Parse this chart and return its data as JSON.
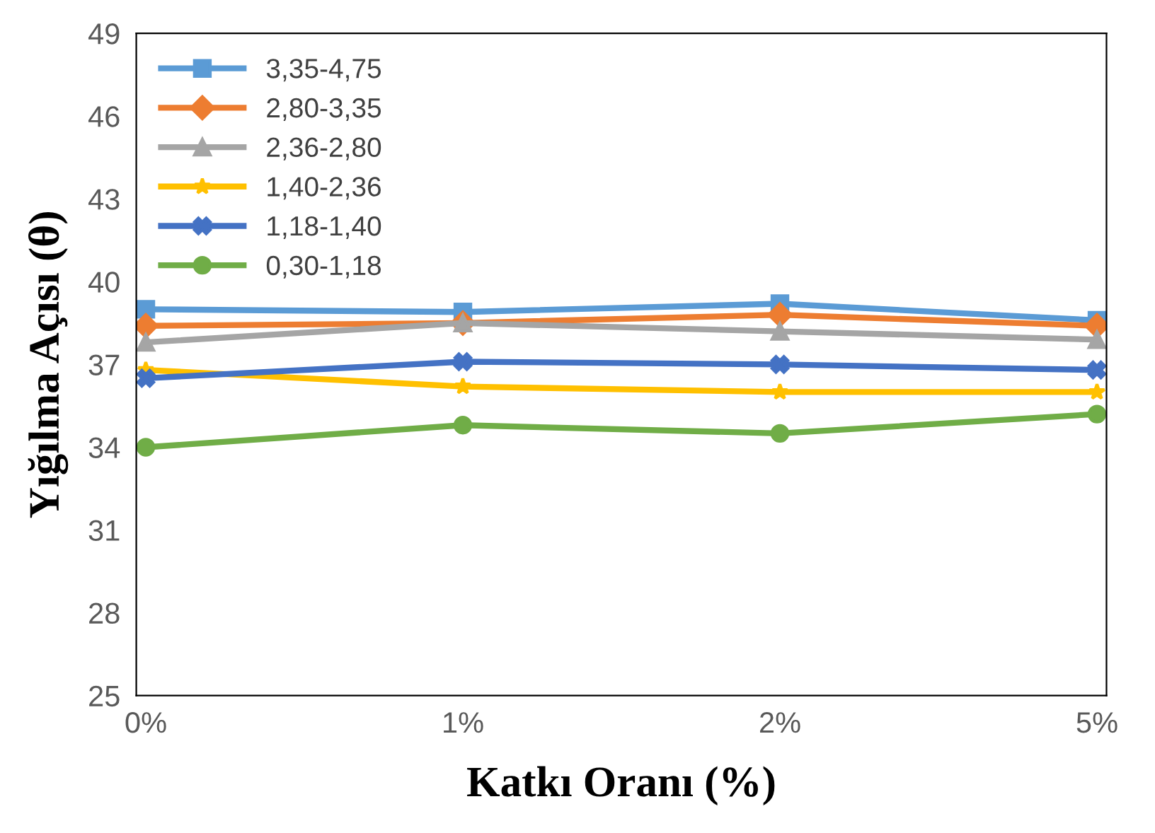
{
  "chart_data": {
    "type": "line",
    "xlabel": "Katkı Oranı (%)",
    "ylabel": "Yığılma Açısı (θ)",
    "categories": [
      "0%",
      "1%",
      "2%",
      "5%"
    ],
    "series": [
      {
        "name": "3,35-4,75",
        "color": "#5b9bd5",
        "marker": "square",
        "values": [
          39.0,
          38.9,
          39.2,
          38.6
        ]
      },
      {
        "name": "2,80-3,35",
        "color": "#ed7d31",
        "marker": "diamond",
        "values": [
          38.4,
          38.5,
          38.8,
          38.4
        ]
      },
      {
        "name": "2,36-2,80",
        "color": "#a5a5a5",
        "marker": "triangle",
        "values": [
          37.8,
          38.5,
          38.2,
          37.9
        ]
      },
      {
        "name": "1,40-2,36",
        "color": "#ffc000",
        "marker": "star",
        "values": [
          36.8,
          36.2,
          36.0,
          36.0
        ]
      },
      {
        "name": "1,18-1,40",
        "color": "#4472c4",
        "marker": "cross",
        "values": [
          36.5,
          37.1,
          37.0,
          36.8
        ]
      },
      {
        "name": "0,30-1,18",
        "color": "#70ad47",
        "marker": "circle",
        "values": [
          34.0,
          34.8,
          34.5,
          35.2
        ]
      }
    ],
    "ylim": [
      25,
      49
    ],
    "yticks": [
      25,
      28,
      31,
      34,
      37,
      40,
      43,
      46,
      49
    ],
    "grid": false,
    "legend": "top left",
    "line_style": "solid"
  }
}
